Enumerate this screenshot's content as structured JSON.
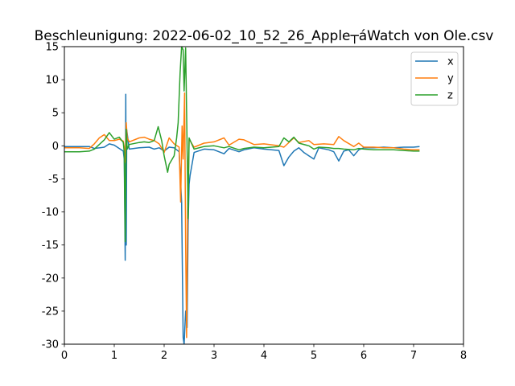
{
  "chart_data": {
    "type": "line",
    "title": "Beschleunigung: 2022-06-02_10_52_26_Apple┬áWatch von Ole.csv",
    "xlabel": "",
    "ylabel": "",
    "xlim": [
      0,
      8
    ],
    "ylim": [
      -30,
      15
    ],
    "xticks": [
      0,
      1,
      2,
      3,
      4,
      5,
      6,
      7,
      8
    ],
    "yticks": [
      -30,
      -25,
      -20,
      -15,
      -10,
      -5,
      0,
      5,
      10,
      15
    ],
    "grid": false,
    "legend_position": "top-right",
    "series": [
      {
        "name": "x",
        "color": "#1f77b4",
        "points": [
          [
            0.0,
            -0.1
          ],
          [
            0.3,
            -0.1
          ],
          [
            0.5,
            -0.1
          ],
          [
            0.6,
            -0.4
          ],
          [
            0.8,
            -0.2
          ],
          [
            0.9,
            0.3
          ],
          [
            1.0,
            0.1
          ],
          [
            1.1,
            -0.4
          ],
          [
            1.18,
            -0.8
          ],
          [
            1.2,
            -2.0
          ],
          [
            1.22,
            -17.3
          ],
          [
            1.23,
            7.8
          ],
          [
            1.24,
            -15
          ],
          [
            1.25,
            2.4
          ],
          [
            1.3,
            -0.5
          ],
          [
            1.5,
            -0.3
          ],
          [
            1.7,
            -0.2
          ],
          [
            1.8,
            -0.5
          ],
          [
            1.9,
            -0.3
          ],
          [
            2.0,
            -0.8
          ],
          [
            2.1,
            -0.2
          ],
          [
            2.2,
            -0.3
          ],
          [
            2.3,
            -0.9
          ],
          [
            2.35,
            -8.5
          ],
          [
            2.38,
            -29
          ],
          [
            2.4,
            -30
          ],
          [
            2.43,
            -25
          ],
          [
            2.46,
            -27.5
          ],
          [
            2.48,
            -12
          ],
          [
            2.5,
            -5.8
          ],
          [
            2.52,
            -4.5
          ],
          [
            2.6,
            -1.0
          ],
          [
            2.8,
            -0.5
          ],
          [
            3.0,
            -0.6
          ],
          [
            3.2,
            -1.2
          ],
          [
            3.3,
            -0.4
          ],
          [
            3.5,
            -0.9
          ],
          [
            3.6,
            -0.6
          ],
          [
            3.8,
            -0.3
          ],
          [
            4.0,
            -0.5
          ],
          [
            4.3,
            -0.7
          ],
          [
            4.4,
            -3.0
          ],
          [
            4.5,
            -1.7
          ],
          [
            4.6,
            -0.8
          ],
          [
            4.7,
            -0.3
          ],
          [
            4.8,
            -1.0
          ],
          [
            4.9,
            -1.5
          ],
          [
            5.0,
            -2.0
          ],
          [
            5.1,
            -0.3
          ],
          [
            5.3,
            -0.6
          ],
          [
            5.4,
            -0.9
          ],
          [
            5.5,
            -2.3
          ],
          [
            5.6,
            -0.8
          ],
          [
            5.7,
            -0.6
          ],
          [
            5.8,
            -1.5
          ],
          [
            5.9,
            -0.6
          ],
          [
            6.0,
            -0.3
          ],
          [
            6.2,
            -0.3
          ],
          [
            6.4,
            -0.2
          ],
          [
            6.6,
            -0.3
          ],
          [
            6.8,
            -0.2
          ],
          [
            7.0,
            -0.2
          ],
          [
            7.12,
            -0.1
          ]
        ]
      },
      {
        "name": "y",
        "color": "#ff7f0e",
        "points": [
          [
            0.0,
            -0.3
          ],
          [
            0.3,
            -0.3
          ],
          [
            0.5,
            -0.4
          ],
          [
            0.6,
            0.3
          ],
          [
            0.7,
            1.2
          ],
          [
            0.8,
            1.7
          ],
          [
            0.9,
            0.8
          ],
          [
            1.0,
            0.8
          ],
          [
            1.1,
            1.0
          ],
          [
            1.18,
            0.7
          ],
          [
            1.2,
            -0.2
          ],
          [
            1.22,
            -2.5
          ],
          [
            1.24,
            3.5
          ],
          [
            1.26,
            1.2
          ],
          [
            1.3,
            0.6
          ],
          [
            1.5,
            1.2
          ],
          [
            1.6,
            1.3
          ],
          [
            1.7,
            1.0
          ],
          [
            1.8,
            0.8
          ],
          [
            1.9,
            0.3
          ],
          [
            2.0,
            -1.0
          ],
          [
            2.1,
            1.2
          ],
          [
            2.2,
            0.3
          ],
          [
            2.3,
            -0.2
          ],
          [
            2.33,
            -8.5
          ],
          [
            2.36,
            3.0
          ],
          [
            2.38,
            -2.0
          ],
          [
            2.41,
            8.0
          ],
          [
            2.43,
            -15.0
          ],
          [
            2.45,
            -29.0
          ],
          [
            2.47,
            -10.0
          ],
          [
            2.5,
            1.0
          ],
          [
            2.6,
            -0.2
          ],
          [
            2.8,
            0.4
          ],
          [
            3.0,
            0.6
          ],
          [
            3.2,
            1.2
          ],
          [
            3.3,
            0.1
          ],
          [
            3.5,
            1.0
          ],
          [
            3.6,
            0.9
          ],
          [
            3.8,
            0.2
          ],
          [
            4.0,
            0.3
          ],
          [
            4.3,
            0.0
          ],
          [
            4.4,
            -0.2
          ],
          [
            4.6,
            1.2
          ],
          [
            4.7,
            0.5
          ],
          [
            4.9,
            0.8
          ],
          [
            5.0,
            0.2
          ],
          [
            5.2,
            0.3
          ],
          [
            5.4,
            0.2
          ],
          [
            5.5,
            1.4
          ],
          [
            5.6,
            0.8
          ],
          [
            5.8,
            -0.1
          ],
          [
            5.9,
            0.4
          ],
          [
            6.0,
            -0.2
          ],
          [
            6.2,
            -0.2
          ],
          [
            6.4,
            -0.3
          ],
          [
            6.6,
            -0.3
          ],
          [
            6.8,
            -0.5
          ],
          [
            7.0,
            -0.6
          ],
          [
            7.12,
            -0.6
          ]
        ]
      },
      {
        "name": "z",
        "color": "#2ca02c",
        "points": [
          [
            0.0,
            -0.9
          ],
          [
            0.3,
            -0.9
          ],
          [
            0.5,
            -0.8
          ],
          [
            0.6,
            -0.5
          ],
          [
            0.8,
            0.9
          ],
          [
            0.9,
            2.0
          ],
          [
            1.0,
            1.0
          ],
          [
            1.1,
            1.3
          ],
          [
            1.18,
            0.5
          ],
          [
            1.2,
            -1.0
          ],
          [
            1.22,
            -14.5
          ],
          [
            1.24,
            2.5
          ],
          [
            1.26,
            -0.5
          ],
          [
            1.3,
            0.2
          ],
          [
            1.5,
            0.5
          ],
          [
            1.6,
            0.6
          ],
          [
            1.7,
            0.5
          ],
          [
            1.8,
            0.8
          ],
          [
            1.88,
            2.9
          ],
          [
            1.95,
            0.8
          ],
          [
            2.0,
            -1.5
          ],
          [
            2.07,
            -4.0
          ],
          [
            2.1,
            -2.8
          ],
          [
            2.2,
            -1.5
          ],
          [
            2.25,
            1.2
          ],
          [
            2.28,
            3.5
          ],
          [
            2.32,
            11.0
          ],
          [
            2.35,
            15.0
          ],
          [
            2.38,
            14.5
          ],
          [
            2.4,
            8.3
          ],
          [
            2.43,
            14.8
          ],
          [
            2.45,
            5.0
          ],
          [
            2.48,
            -11.0
          ],
          [
            2.5,
            1.2
          ],
          [
            2.6,
            -0.5
          ],
          [
            2.8,
            -0.1
          ],
          [
            3.0,
            0.0
          ],
          [
            3.2,
            -0.3
          ],
          [
            3.3,
            -0.1
          ],
          [
            3.5,
            -0.6
          ],
          [
            3.6,
            -0.4
          ],
          [
            3.8,
            -0.2
          ],
          [
            4.0,
            -0.3
          ],
          [
            4.3,
            -0.1
          ],
          [
            4.4,
            1.2
          ],
          [
            4.5,
            0.6
          ],
          [
            4.6,
            1.3
          ],
          [
            4.7,
            0.4
          ],
          [
            4.9,
            0.0
          ],
          [
            5.0,
            -0.5
          ],
          [
            5.1,
            -0.2
          ],
          [
            5.3,
            -0.3
          ],
          [
            5.4,
            -0.4
          ],
          [
            5.5,
            -0.4
          ],
          [
            5.6,
            -0.5
          ],
          [
            5.8,
            -0.6
          ],
          [
            5.9,
            -0.4
          ],
          [
            6.0,
            -0.5
          ],
          [
            6.2,
            -0.6
          ],
          [
            6.4,
            -0.6
          ],
          [
            6.6,
            -0.6
          ],
          [
            6.8,
            -0.7
          ],
          [
            7.0,
            -0.8
          ],
          [
            7.12,
            -0.8
          ]
        ]
      }
    ]
  }
}
